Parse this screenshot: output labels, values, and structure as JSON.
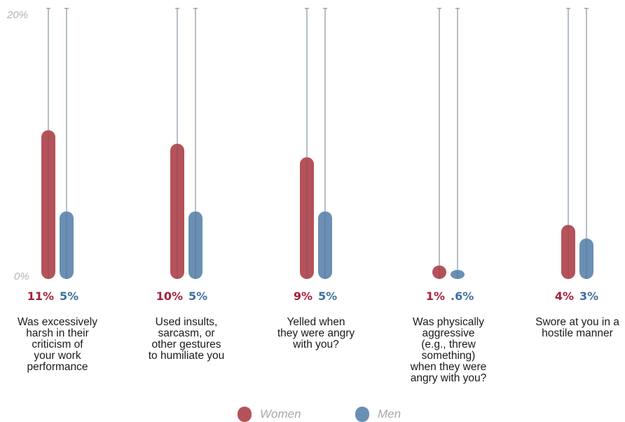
{
  "chart_data": {
    "type": "bar",
    "ylim": [
      0,
      20
    ],
    "yticks": [
      "0%",
      "20%"
    ],
    "categories": [
      [
        "Was excessively",
        "harsh in their",
        "criticism of",
        "your work",
        "performance"
      ],
      [
        "Used insults,",
        "sarcasm, or",
        "other gestures",
        "to humiliate you"
      ],
      [
        "Yelled when",
        "they were angry",
        "with you?"
      ],
      [
        "Was physically",
        "aggressive",
        "(e.g., threw",
        "something)",
        "when they were",
        "angry with you?"
      ],
      [
        "Swore at you in a",
        "hostile manner"
      ]
    ],
    "series": [
      {
        "name": "Women",
        "color": "#b5525a",
        "label_color": "#a3213a",
        "values": [
          11,
          10,
          9,
          1,
          4
        ],
        "labels": [
          "11%",
          "10%",
          "9%",
          "1%",
          "4%"
        ]
      },
      {
        "name": "Men",
        "color": "#6a8fb5",
        "label_color": "#3d6f9e",
        "values": [
          5,
          5,
          5,
          0.6,
          3
        ],
        "labels": [
          "5%",
          "5%",
          "5%",
          ".6%",
          "3%"
        ]
      }
    ]
  }
}
